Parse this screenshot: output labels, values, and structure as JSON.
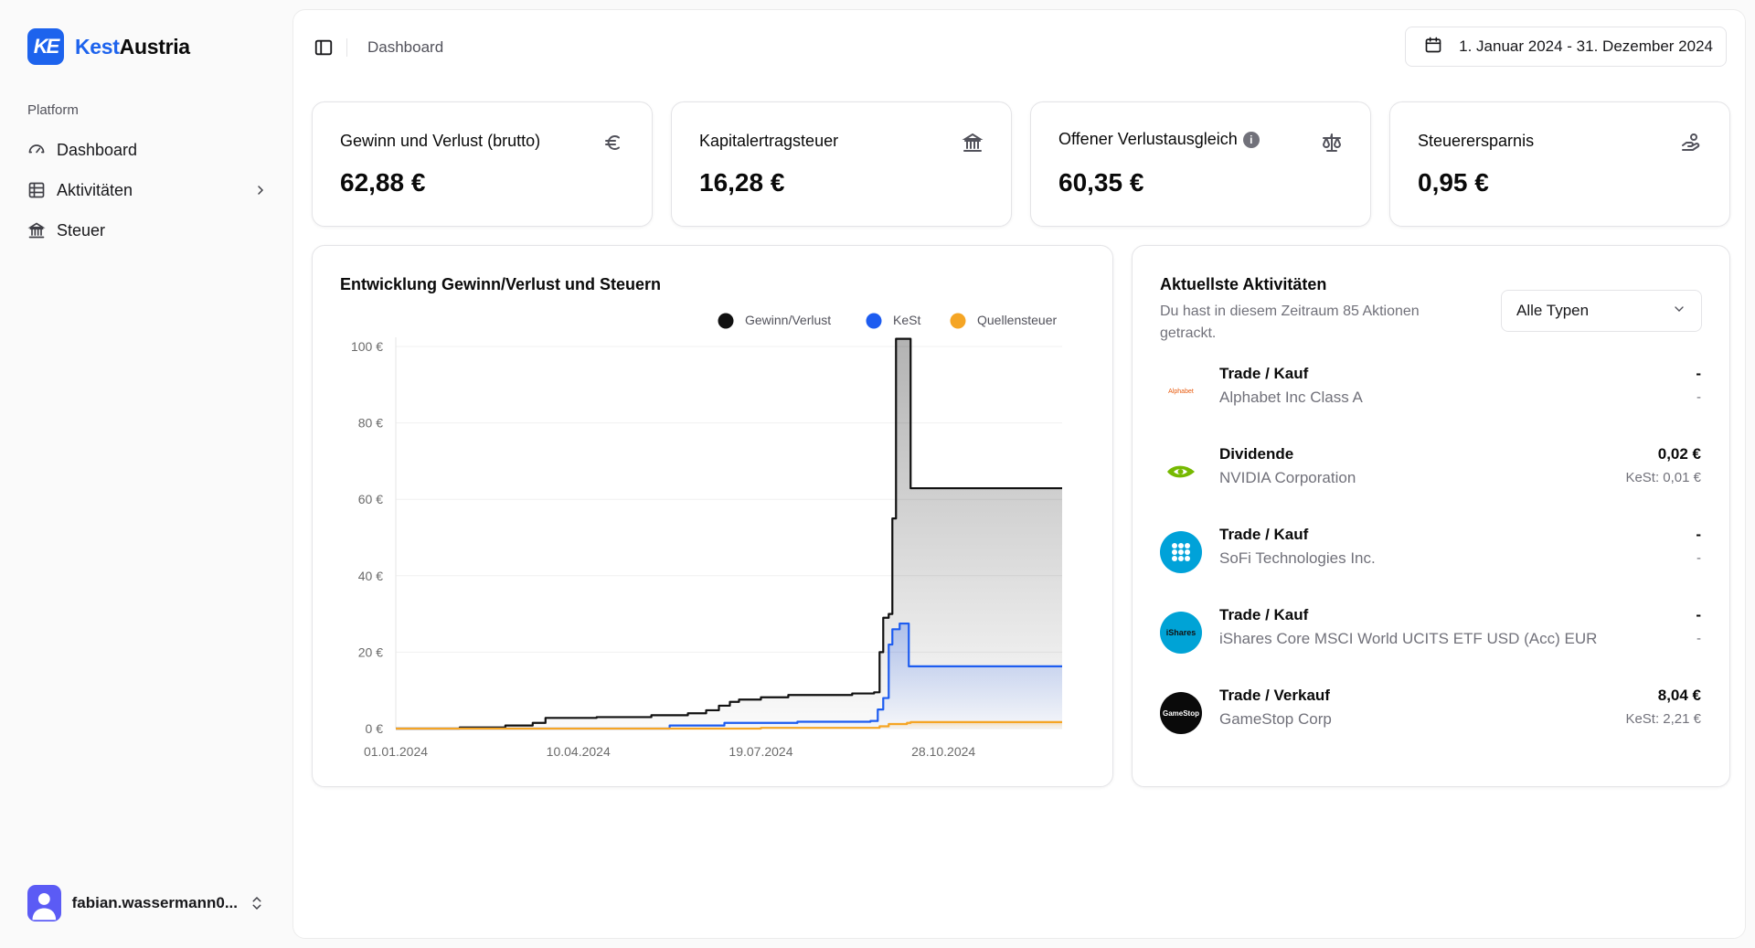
{
  "brand": {
    "part1": "Kest",
    "part2": "Austria",
    "logo_text": "KE",
    "color": "#1d63ed"
  },
  "sidebar": {
    "group_label": "Platform",
    "items": [
      {
        "label": "Dashboard",
        "icon": "gauge-icon"
      },
      {
        "label": "Aktivitäten",
        "icon": "table-icon",
        "has_submenu": true
      },
      {
        "label": "Steuer",
        "icon": "bank-icon"
      }
    ],
    "user": {
      "name": "fabian.wassermann0..."
    }
  },
  "topbar": {
    "breadcrumb": "Dashboard",
    "date_range": "1. Januar 2024 - 31. Dezember 2024"
  },
  "stats": [
    {
      "title": "Gewinn und Verlust (brutto)",
      "value": "62,88 €",
      "icon": "euro-icon"
    },
    {
      "title": "Kapitalertragsteuer",
      "value": "16,28 €",
      "icon": "bank-icon"
    },
    {
      "title": "Offener Verlustausgleich",
      "value": "60,35 €",
      "icon": "scale-icon",
      "info": "i"
    },
    {
      "title": "Steuerersparnis",
      "value": "0,95 €",
      "icon": "hand-coins-icon"
    }
  ],
  "chart_data": {
    "type": "area",
    "title": "Entwicklung Gewinn/Verlust und Steuern",
    "x_tick_labels": [
      "01.01.2024",
      "10.04.2024",
      "19.07.2024",
      "28.10.2024"
    ],
    "y_tick_labels": [
      "0 €",
      "20 €",
      "40 €",
      "60 €",
      "80 €",
      "100 €"
    ],
    "xlim_days": [
      0,
      365
    ],
    "ylim": [
      0,
      100
    ],
    "legend_position": "top-right",
    "series": [
      {
        "name": "Gewinn/Verlust",
        "color": "#111111",
        "points": [
          [
            0,
            0
          ],
          [
            35,
            0.3
          ],
          [
            60,
            0.8
          ],
          [
            75,
            1.5
          ],
          [
            82,
            2.8
          ],
          [
            110,
            3.0
          ],
          [
            140,
            3.5
          ],
          [
            160,
            4.0
          ],
          [
            170,
            4.8
          ],
          [
            177,
            6.0
          ],
          [
            183,
            7.0
          ],
          [
            188,
            7.6
          ],
          [
            200,
            8.2
          ],
          [
            215,
            8.8
          ],
          [
            250,
            9.2
          ],
          [
            262,
            9.5
          ],
          [
            265,
            20
          ],
          [
            267,
            29
          ],
          [
            270,
            30
          ],
          [
            272,
            55
          ],
          [
            274,
            102
          ],
          [
            280,
            102
          ],
          [
            282,
            62.9
          ],
          [
            365,
            62.9
          ]
        ]
      },
      {
        "name": "KeSt",
        "color": "#1d5cf0",
        "points": [
          [
            0,
            0
          ],
          [
            150,
            0.8
          ],
          [
            180,
            1.5
          ],
          [
            220,
            1.8
          ],
          [
            260,
            2.0
          ],
          [
            264,
            5.0
          ],
          [
            267,
            8
          ],
          [
            270,
            22
          ],
          [
            272,
            26
          ],
          [
            276,
            27.5
          ],
          [
            280,
            27.5
          ],
          [
            281,
            16.3
          ],
          [
            365,
            16.3
          ]
        ]
      },
      {
        "name": "Quellensteuer",
        "color": "#f5a524",
        "points": [
          [
            0,
            0
          ],
          [
            200,
            0.2
          ],
          [
            265,
            0.6
          ],
          [
            270,
            1.2
          ],
          [
            280,
            1.5
          ],
          [
            282,
            1.7
          ],
          [
            365,
            1.7
          ]
        ]
      }
    ]
  },
  "activities": {
    "title": "Aktuellste Aktivitäten",
    "subtitle": "Du hast in diesem Zeitraum 85 Aktionen getrackt.",
    "filter": "Alle Typen",
    "items": [
      {
        "type": "Trade / Kauf",
        "name": "Alphabet Inc Class A",
        "amount": "-",
        "kest": "-",
        "logo": "alphabet-logo",
        "logo_text": "Alphabet"
      },
      {
        "type": "Dividende",
        "name": "NVIDIA Corporation",
        "amount": "0,02 €",
        "kest": "KeSt: 0,01 €",
        "logo": "nvidia-logo",
        "logo_text": ""
      },
      {
        "type": "Trade / Kauf",
        "name": "SoFi Technologies Inc.",
        "amount": "-",
        "kest": "-",
        "logo": "sofi-logo",
        "logo_text": ""
      },
      {
        "type": "Trade / Kauf",
        "name": "iShares Core MSCI World UCITS ETF USD (Acc) EUR",
        "amount": "-",
        "kest": "-",
        "logo": "ishares-logo",
        "logo_text": "iShares"
      },
      {
        "type": "Trade / Verkauf",
        "name": "GameStop Corp",
        "amount": "8,04 €",
        "kest": "KeSt: 2,21 €",
        "logo": "gamestop-logo",
        "logo_text": "GameStop"
      }
    ]
  }
}
